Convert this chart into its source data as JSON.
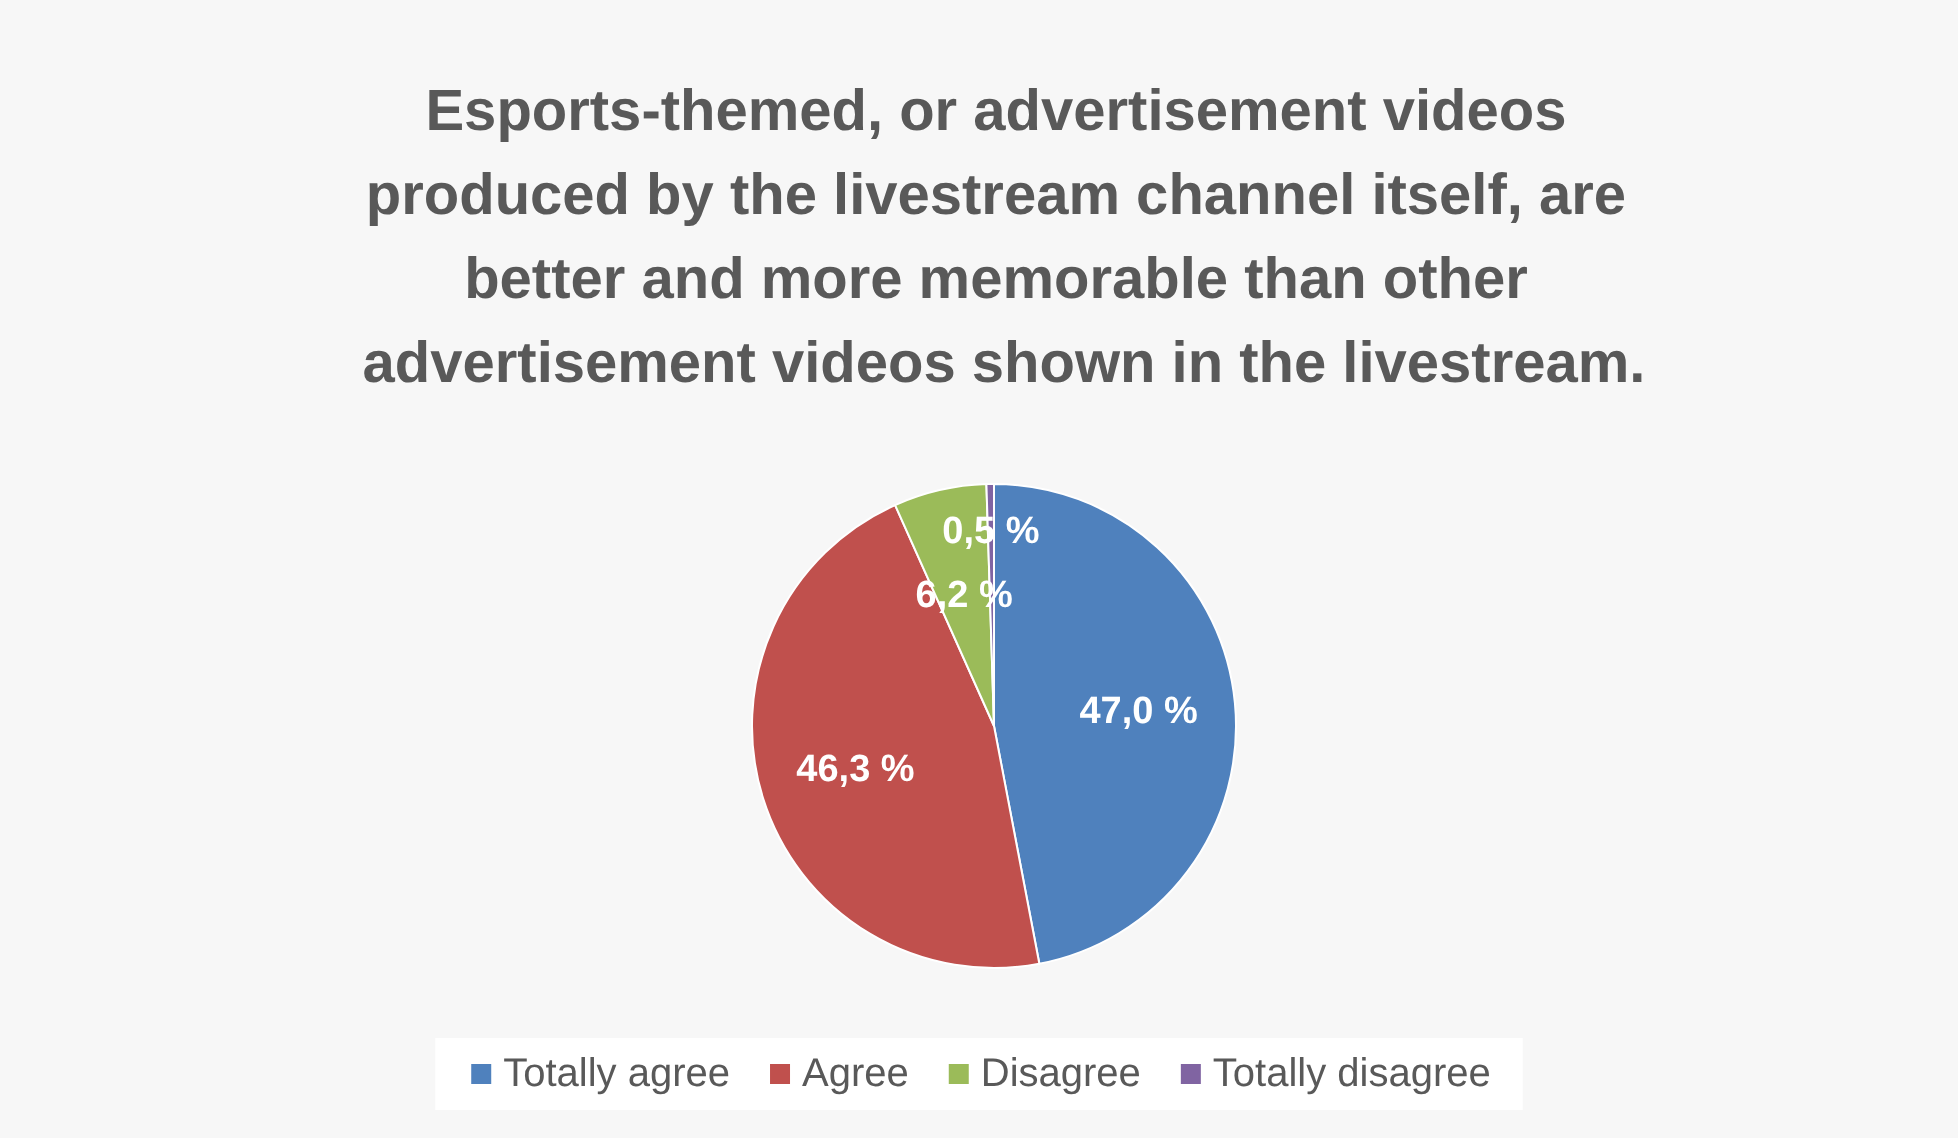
{
  "chart_data": {
    "type": "pie",
    "title": "Esports-themed, or advertisement videos produced by the livestream channel itself, are better and more memorable than other advertisement videos shown in the livestream.",
    "categories": [
      "Totally agree",
      "Agree",
      "Disagree",
      "Totally disagree"
    ],
    "values": [
      47.0,
      46.3,
      6.2,
      0.5
    ],
    "colors": [
      "#4f81bd",
      "#c0504d",
      "#9bbb59",
      "#8064a2"
    ],
    "value_labels": [
      "47,0 %",
      "46,3 %",
      "6,2 %",
      "0,5 %"
    ],
    "legend": "bottom"
  }
}
